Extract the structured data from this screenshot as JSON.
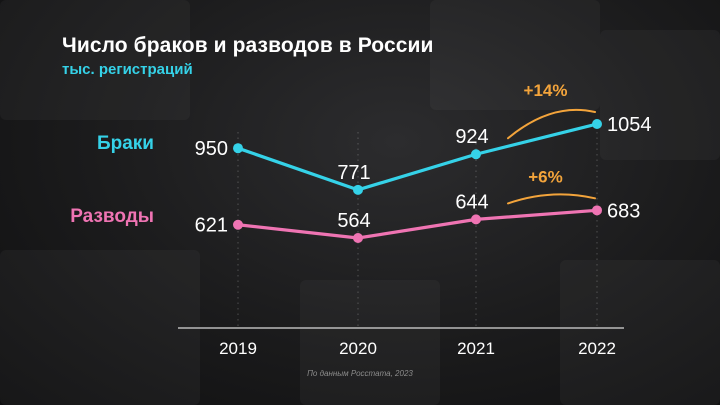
{
  "title": "Число браков и разводов в России",
  "subtitle": "тыс. регистраций",
  "source": "По данным Росстата, 2023",
  "colors": {
    "marriages": "#35d2e8",
    "divorces": "#ef74b3",
    "change": "#f3a43b",
    "axis": "#d9d9d9",
    "text": "#ffffff"
  },
  "chart_data": {
    "type": "line",
    "title": "Число браков и разводов в России",
    "subtitle": "тыс. регистраций",
    "categories": [
      "2019",
      "2020",
      "2021",
      "2022"
    ],
    "series": [
      {
        "name": "Браки",
        "values": [
          950,
          771,
          924,
          1054
        ],
        "labels": [
          "950",
          "771",
          "924",
          "1054"
        ],
        "color": "#35d2e8"
      },
      {
        "name": "Разводы",
        "values": [
          621,
          564,
          644,
          683
        ],
        "labels": [
          "621",
          "564",
          "644",
          "683"
        ],
        "color": "#ef74b3"
      }
    ],
    "annotations": [
      {
        "series": "Браки",
        "from": "2021",
        "to": "2022",
        "text": "+14%"
      },
      {
        "series": "Разводы",
        "from": "2021",
        "to": "2022",
        "text": "+6%"
      }
    ],
    "xlabel": "",
    "ylabel": "",
    "grid": false,
    "legend": "left"
  }
}
